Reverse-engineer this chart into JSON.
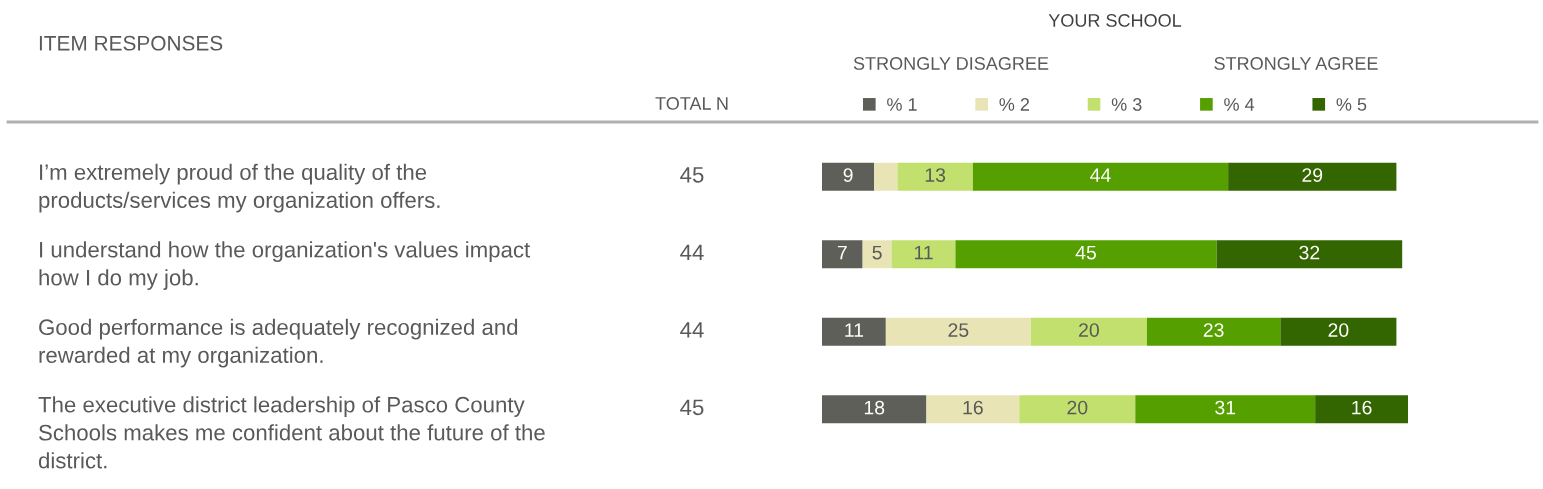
{
  "chart_data": {
    "type": "bar",
    "orientation": "horizontal",
    "stacked": true,
    "title": "ITEM RESPONSES",
    "subtitle": "YOUR SCHOOL",
    "categories": [
      "I’m extremely proud of the quality of the products/services my organization offers.",
      "I understand how the organization's values impact how I do my job.",
      "Good performance is adequately recognized and rewarded at my organization.",
      "The executive district leadership of Pasco County Schools makes me confident about the future of the district."
    ],
    "series": [
      {
        "name": "% 1",
        "color": "#5f5f5a",
        "values": [
          9,
          7,
          11,
          18
        ],
        "value_labels": [
          "9",
          "7",
          "11",
          "18"
        ]
      },
      {
        "name": "% 2",
        "color": "#e8e4b5",
        "values": [
          4,
          5,
          25,
          16
        ],
        "value_labels": [
          null,
          "5",
          "25",
          "16"
        ]
      },
      {
        "name": "% 3",
        "color": "#c2e06e",
        "values": [
          13,
          11,
          20,
          20
        ],
        "value_labels": [
          "13",
          "11",
          "20",
          "20"
        ]
      },
      {
        "name": "% 4",
        "color": "#55a000",
        "values": [
          44,
          45,
          23,
          31
        ],
        "value_labels": [
          "44",
          "45",
          "23",
          "31"
        ]
      },
      {
        "name": "% 5",
        "color": "#336600",
        "values": [
          29,
          32,
          20,
          16
        ],
        "value_labels": [
          "29",
          "32",
          "20",
          "16"
        ]
      }
    ],
    "xlim": [
      0,
      101
    ],
    "tick_labels": "y",
    "legend": "top",
    "grid": false,
    "annotations": [
      "TOTAL N",
      "STRONGLY DISAGREE",
      "STRONGLY AGREE",
      "45",
      "44",
      "44",
      "45"
    ]
  }
}
